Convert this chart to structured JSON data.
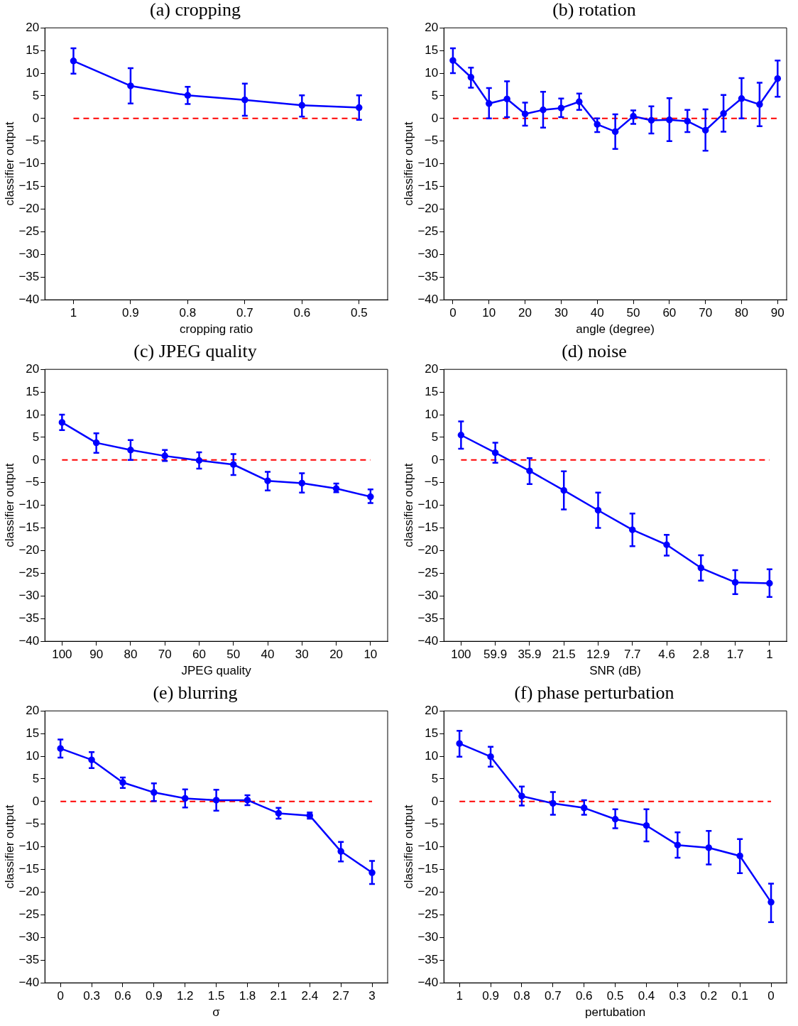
{
  "chart_data": [
    {
      "type": "line",
      "title": "(a) cropping",
      "xlabel": "cropping ratio",
      "ylabel": "classifier output",
      "categories": [
        "1",
        "0.9",
        "0.8",
        "0.7",
        "0.6",
        "0.5"
      ],
      "series": [
        {
          "color": "#0000ff",
          "values": [
            12.7,
            7.2,
            5.1,
            4.1,
            2.9,
            2.4
          ],
          "errors": [
            [
              9.9,
              15.5
            ],
            [
              3.3,
              11.1
            ],
            [
              3.2,
              7.0
            ],
            [
              0.6,
              7.7
            ],
            [
              0.4,
              5.1
            ],
            [
              -0.3,
              5.1
            ]
          ]
        }
      ],
      "ylim": [
        -40,
        20
      ],
      "yticks": [
        -40,
        -35,
        -30,
        -25,
        -20,
        -15,
        -10,
        -5,
        0,
        5,
        10,
        15,
        20
      ],
      "grid": false,
      "legend": false,
      "marker": "circle",
      "line_style": "solid",
      "ref_lines": [
        {
          "axis": "y",
          "value": 0,
          "color": "#ff0000",
          "line_style": "dashed"
        }
      ]
    },
    {
      "type": "line",
      "title": "(b) rotation",
      "xlabel": "angle (degree)",
      "ylabel": "classifier output",
      "x": [
        0,
        5,
        10,
        15,
        20,
        25,
        30,
        35,
        40,
        45,
        50,
        55,
        60,
        65,
        70,
        75,
        80,
        85,
        90
      ],
      "series": [
        {
          "color": "#0000ff",
          "values": [
            12.8,
            9.1,
            3.3,
            4.3,
            1.0,
            1.9,
            2.3,
            3.7,
            -1.3,
            -2.9,
            0.5,
            -0.4,
            -0.3,
            -0.6,
            -2.6,
            1.1,
            4.4,
            3.1,
            8.8
          ],
          "errors": [
            [
              10,
              15.5
            ],
            [
              6.8,
              11.2
            ],
            [
              0,
              6.7
            ],
            [
              0.3,
              8.2
            ],
            [
              -1.6,
              3.5
            ],
            [
              -2,
              5.9
            ],
            [
              0.3,
              4.4
            ],
            [
              1.9,
              5.5
            ],
            [
              -3,
              0
            ],
            [
              -6.7,
              0.9
            ],
            [
              -1.2,
              1.8
            ],
            [
              -3.3,
              2.7
            ],
            [
              -5,
              4.5
            ],
            [
              -3,
              1.9
            ],
            [
              -7.1,
              2
            ],
            [
              -2.9,
              5.2
            ],
            [
              0,
              8.9
            ],
            [
              -1.7,
              7.9
            ],
            [
              4.8,
              12.8
            ]
          ]
        }
      ],
      "xlim": [
        -2.5,
        92.5
      ],
      "xticks": [
        0,
        10,
        20,
        30,
        40,
        50,
        60,
        70,
        80,
        90
      ],
      "ylim": [
        -40,
        20
      ],
      "yticks": [
        -40,
        -35,
        -30,
        -25,
        -20,
        -15,
        -10,
        -5,
        0,
        5,
        10,
        15,
        20
      ],
      "grid": false,
      "legend": false,
      "marker": "circle",
      "line_style": "solid",
      "ref_lines": [
        {
          "axis": "y",
          "value": 0,
          "color": "#ff0000",
          "line_style": "dashed"
        }
      ]
    },
    {
      "type": "line",
      "title": "(c) JPEG quality",
      "xlabel": "JPEG quality",
      "ylabel": "classifier output",
      "categories": [
        "100",
        "90",
        "80",
        "70",
        "60",
        "50",
        "40",
        "30",
        "20",
        "10"
      ],
      "series": [
        {
          "color": "#0000ff",
          "values": [
            8.3,
            3.8,
            2.2,
            0.9,
            -0.1,
            -1.0,
            -4.6,
            -5.1,
            -6.3,
            -8.1
          ],
          "errors": [
            [
              6.6,
              10
            ],
            [
              1.6,
              5.9
            ],
            [
              0,
              4.4
            ],
            [
              -0.2,
              2.2
            ],
            [
              -1.9,
              1.7
            ],
            [
              -3.3,
              1.3
            ],
            [
              -6.7,
              -2.6
            ],
            [
              -7.2,
              -2.9
            ],
            [
              -7.1,
              -5.2
            ],
            [
              -9.5,
              -6.5
            ]
          ]
        }
      ],
      "ylim": [
        -40,
        20
      ],
      "yticks": [
        -40,
        -35,
        -30,
        -25,
        -20,
        -15,
        -10,
        -5,
        0,
        5,
        10,
        15,
        20
      ],
      "grid": false,
      "legend": false,
      "marker": "circle",
      "line_style": "solid",
      "ref_lines": [
        {
          "axis": "y",
          "value": 0,
          "color": "#ff0000",
          "line_style": "dashed"
        }
      ]
    },
    {
      "type": "line",
      "title": "(d) noise",
      "xlabel": "SNR (dB)",
      "ylabel": "classifier output",
      "categories": [
        "100",
        "59.9",
        "35.9",
        "21.5",
        "12.9",
        "7.7",
        "4.6",
        "2.8",
        "1.7",
        "1"
      ],
      "series": [
        {
          "color": "#0000ff",
          "values": [
            5.5,
            1.6,
            -2.4,
            -6.7,
            -11.1,
            -15.4,
            -18.7,
            -23.8,
            -27,
            -27.2
          ],
          "errors": [
            [
              2.5,
              8.5
            ],
            [
              -0.6,
              3.8
            ],
            [
              -5.3,
              0.4
            ],
            [
              -10.9,
              -2.5
            ],
            [
              -15,
              -7.2
            ],
            [
              -19,
              -11.8
            ],
            [
              -21.1,
              -16.5
            ],
            [
              -26.6,
              -21
            ],
            [
              -29.6,
              -24.3
            ],
            [
              -30.2,
              -24.1
            ]
          ]
        }
      ],
      "ylim": [
        -40,
        20
      ],
      "yticks": [
        -40,
        -35,
        -30,
        -25,
        -20,
        -15,
        -10,
        -5,
        0,
        5,
        10,
        15,
        20
      ],
      "grid": false,
      "legend": false,
      "marker": "circle",
      "line_style": "solid",
      "ref_lines": [
        {
          "axis": "y",
          "value": 0,
          "color": "#ff0000",
          "line_style": "dashed"
        }
      ]
    },
    {
      "type": "line",
      "title": "(e) blurring",
      "xlabel": "σ",
      "ylabel": "classifier output",
      "categories": [
        "0",
        "0.3",
        "0.6",
        "0.9",
        "1.2",
        "1.5",
        "1.8",
        "2.1",
        "2.4",
        "2.7",
        "3"
      ],
      "series": [
        {
          "color": "#0000ff",
          "values": [
            11.7,
            9.2,
            4.2,
            2.0,
            0.7,
            0.3,
            0.3,
            -2.6,
            -3.1,
            -11.0,
            -15.7
          ],
          "errors": [
            [
              9.7,
              13.7
            ],
            [
              7.4,
              10.9
            ],
            [
              3.0,
              5.3
            ],
            [
              0.1,
              4.0
            ],
            [
              -1.3,
              2.7
            ],
            [
              -2.0,
              2.6
            ],
            [
              -0.8,
              1.4
            ],
            [
              -3.8,
              -1.4
            ],
            [
              -3.8,
              -2.4
            ],
            [
              -13.2,
              -8.9
            ],
            [
              -18.2,
              -13.1
            ]
          ]
        }
      ],
      "ylim": [
        -40,
        20
      ],
      "yticks": [
        -40,
        -35,
        -30,
        -25,
        -20,
        -15,
        -10,
        -5,
        0,
        5,
        10,
        15,
        20
      ],
      "grid": false,
      "legend": false,
      "marker": "circle",
      "line_style": "solid",
      "ref_lines": [
        {
          "axis": "y",
          "value": 0,
          "color": "#ff0000",
          "line_style": "dashed"
        }
      ]
    },
    {
      "type": "line",
      "title": "(f) phase perturbation",
      "xlabel": "pertubation",
      "ylabel": "classifier output",
      "categories": [
        "1",
        "0.9",
        "0.8",
        "0.7",
        "0.6",
        "0.5",
        "0.4",
        "0.3",
        "0.2",
        "0.1",
        "0"
      ],
      "series": [
        {
          "color": "#0000ff",
          "values": [
            12.8,
            9.9,
            1.2,
            -0.4,
            -1.4,
            -3.9,
            -5.3,
            -9.6,
            -10.2,
            -12.0,
            -22.2
          ],
          "errors": [
            [
              9.9,
              15.6
            ],
            [
              7.7,
              12.1
            ],
            [
              -0.9,
              3.3
            ],
            [
              -2.9,
              2.1
            ],
            [
              -2.9,
              0.3
            ],
            [
              -5.9,
              -1.7
            ],
            [
              -8.8,
              -1.7
            ],
            [
              -12.4,
              -6.8
            ],
            [
              -13.9,
              -6.5
            ],
            [
              -15.8,
              -8.3
            ],
            [
              -26.6,
              -18.1
            ]
          ]
        }
      ],
      "ylim": [
        -40,
        20
      ],
      "yticks": [
        -40,
        -35,
        -30,
        -25,
        -20,
        -15,
        -10,
        -5,
        0,
        5,
        10,
        15,
        20
      ],
      "grid": false,
      "legend": false,
      "marker": "circle",
      "line_style": "solid",
      "ref_lines": [
        {
          "axis": "y",
          "value": 0,
          "color": "#ff0000",
          "line_style": "dashed"
        }
      ]
    }
  ]
}
